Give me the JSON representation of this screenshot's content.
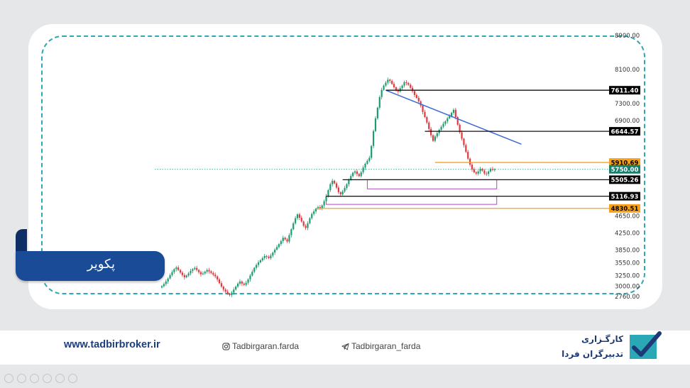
{
  "banner": {
    "title": "پکویر"
  },
  "footer": {
    "website": "www.tadbirbroker.ir",
    "instagram": "Tadbirgaran.farda",
    "telegram": "Tadbirgaran_farda",
    "brand_line1": "کارگـزاری",
    "brand_line2": "تدبیرگران فردا",
    "instagram_icon": "instagram-icon",
    "telegram_icon": "telegram-icon"
  },
  "chart_data": {
    "type": "candlestick",
    "ylim": [
      2640,
      8950
    ],
    "yticks": [
      {
        "v": 8900,
        "label": "8900.00"
      },
      {
        "v": 8100,
        "label": "8100.00"
      },
      {
        "v": 7300,
        "label": "7300.00"
      },
      {
        "v": 6900,
        "label": "6900.00"
      },
      {
        "v": 4650,
        "label": "4650.00"
      },
      {
        "v": 4250,
        "label": "4250.00"
      },
      {
        "v": 3850,
        "label": "3850.00"
      },
      {
        "v": 3550,
        "label": "3550.00"
      },
      {
        "v": 3250,
        "label": "3250.00"
      },
      {
        "v": 3000,
        "label": "3000.00"
      },
      {
        "v": 2760,
        "label": "2760.00"
      }
    ],
    "levels": [
      {
        "value": 7611.4,
        "label": "7611.40",
        "color": "#000000",
        "text_color": "#ffffff"
      },
      {
        "value": 6644.57,
        "label": "6644.57",
        "color": "#000000",
        "text_color": "#ffffff"
      },
      {
        "value": 5910.69,
        "label": "5910.69",
        "color": "#f7a01c",
        "text_color": "#000000"
      },
      {
        "value": 5750.0,
        "label": "5750.00",
        "color": "#15806b",
        "text_color": "#ffffff"
      },
      {
        "value": 5505.26,
        "label": "5505.26",
        "color": "#000000",
        "text_color": "#ffffff"
      },
      {
        "value": 5116.93,
        "label": "5116.93",
        "color": "#000000",
        "text_color": "#ffffff"
      },
      {
        "value": 4830.51,
        "label": "4830.51",
        "color": "#f7a01c",
        "text_color": "#000000"
      }
    ],
    "close": [
      3000,
      3050,
      3110,
      3180,
      3260,
      3330,
      3400,
      3440,
      3380,
      3320,
      3260,
      3210,
      3250,
      3300,
      3360,
      3400,
      3430,
      3380,
      3330,
      3280,
      3300,
      3340,
      3380,
      3350,
      3310,
      3270,
      3230,
      3160,
      3070,
      2990,
      2920,
      2870,
      2820,
      2790,
      2850,
      2920,
      2990,
      3060,
      3110,
      3060,
      3030,
      3080,
      3160,
      3250,
      3340,
      3430,
      3500,
      3560,
      3610,
      3660,
      3710,
      3690,
      3660,
      3720,
      3790,
      3860,
      3920,
      3990,
      4060,
      4140,
      4100,
      4050,
      4200,
      4340,
      4480,
      4600,
      4690,
      4610,
      4520,
      4420,
      4370,
      4480,
      4600,
      4700,
      4760,
      4820,
      4860,
      4830,
      4900,
      5000,
      5120,
      5260,
      5400,
      5480,
      5420,
      5320,
      5210,
      5160,
      5230,
      5310,
      5400,
      5500,
      5590,
      5670,
      5700,
      5640,
      5590,
      5680,
      5790,
      5880,
      5950,
      6020,
      6300,
      6650,
      6950,
      7200,
      7450,
      7620,
      7720,
      7790,
      7860,
      7830,
      7760,
      7680,
      7620,
      7580,
      7660,
      7720,
      7800,
      7780,
      7740,
      7670,
      7590,
      7500,
      7430,
      7350,
      7250,
      7100,
      6980,
      6850,
      6700,
      6550,
      6420,
      6520,
      6600,
      6680,
      6750,
      6820,
      6880,
      6950,
      7000,
      7080,
      7150,
      6980,
      6800,
      6620,
      6470,
      6320,
      6160,
      6000,
      5860,
      5750,
      5680,
      5650,
      5700,
      5760,
      5720,
      5650,
      5640,
      5700,
      5760,
      5740,
      5750
    ],
    "annotations": [
      {
        "type": "trendline",
        "from": [
          109,
          7611
        ],
        "to": [
          175,
          6340
        ],
        "color": "#3a6ad6"
      },
      {
        "type": "range_box",
        "x": [
          100,
          163
        ],
        "y": [
          5290,
          5505
        ],
        "color": "#b347c7"
      },
      {
        "type": "range_box",
        "x": [
          80,
          163
        ],
        "y": [
          4925,
          5116
        ],
        "color": "#b347c7"
      }
    ]
  }
}
